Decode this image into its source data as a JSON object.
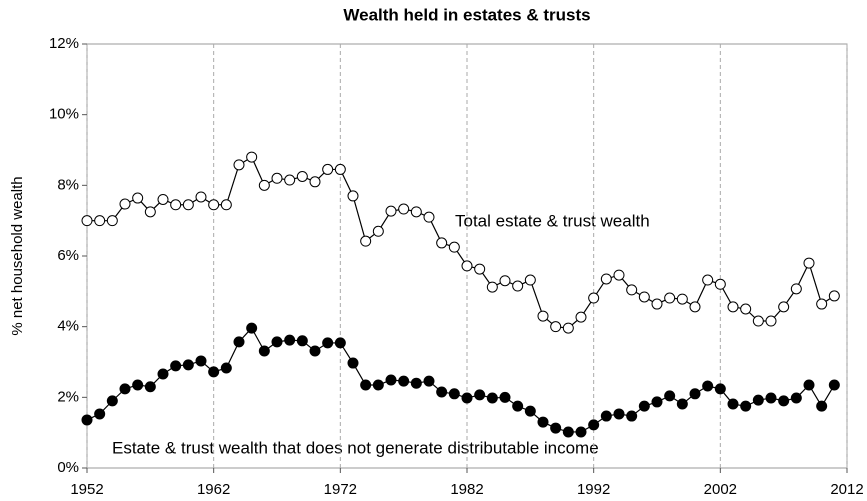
{
  "chart_data": {
    "type": "line",
    "title": "Wealth held in estates & trusts",
    "y_label": "% net household wealth",
    "x": [
      1952,
      1953,
      1954,
      1955,
      1956,
      1957,
      1958,
      1959,
      1960,
      1961,
      1962,
      1963,
      1964,
      1965,
      1966,
      1967,
      1968,
      1969,
      1970,
      1971,
      1972,
      1973,
      1974,
      1975,
      1976,
      1977,
      1978,
      1979,
      1980,
      1981,
      1982,
      1983,
      1984,
      1985,
      1986,
      1987,
      1988,
      1989,
      1990,
      1991,
      1992,
      1993,
      1994,
      1995,
      1996,
      1997,
      1998,
      1999,
      2000,
      2001,
      2002,
      2003,
      2004,
      2005,
      2006,
      2007,
      2008,
      2009,
      2010,
      2011
    ],
    "series": [
      {
        "name": "Total estate & trust wealth",
        "color": "#000000",
        "marker_fill": "#ffffff",
        "values": [
          7.0,
          7.0,
          7.0,
          7.47,
          7.64,
          7.25,
          7.6,
          7.45,
          7.45,
          7.67,
          7.45,
          7.45,
          8.58,
          8.8,
          8.0,
          8.2,
          8.15,
          8.25,
          8.1,
          8.45,
          8.45,
          7.7,
          6.42,
          6.7,
          7.27,
          7.33,
          7.25,
          7.1,
          6.37,
          6.25,
          5.72,
          5.63,
          5.12,
          5.3,
          5.15,
          5.32,
          4.3,
          4.0,
          3.96,
          4.27,
          4.81,
          5.35,
          5.46,
          5.04,
          4.84,
          4.64,
          4.81,
          4.78,
          4.56,
          5.32,
          5.2,
          4.56,
          4.5,
          4.16,
          4.16,
          4.56,
          5.07,
          5.8,
          4.64,
          4.87
        ]
      },
      {
        "name": "Estate & trust wealth that does not generate distributable income",
        "color": "#000000",
        "marker_fill": "#000000",
        "values": [
          1.36,
          1.53,
          1.9,
          2.24,
          2.35,
          2.3,
          2.66,
          2.89,
          2.92,
          3.03,
          2.72,
          2.83,
          3.57,
          3.96,
          3.31,
          3.57,
          3.62,
          3.6,
          3.31,
          3.54,
          3.54,
          2.97,
          2.35,
          2.35,
          2.49,
          2.46,
          2.4,
          2.46,
          2.15,
          2.1,
          1.98,
          2.07,
          1.98,
          2.0,
          1.75,
          1.61,
          1.3,
          1.13,
          1.02,
          1.02,
          1.22,
          1.47,
          1.53,
          1.47,
          1.75,
          1.87,
          2.04,
          1.81,
          2.1,
          2.32,
          2.24,
          1.81,
          1.75,
          1.92,
          1.98,
          1.9,
          1.98,
          2.35,
          1.75,
          2.35
        ]
      }
    ],
    "xlim": [
      1952,
      2012
    ],
    "xticks": [
      1952,
      1962,
      1972,
      1982,
      1992,
      2002,
      2012
    ],
    "ylim": [
      0,
      12
    ],
    "yticks": [
      {
        "value": 0,
        "label": "0%"
      },
      {
        "value": 2,
        "label": "2%"
      },
      {
        "value": 4,
        "label": "4%"
      },
      {
        "value": 6,
        "label": "6%"
      },
      {
        "value": 8,
        "label": "8%"
      },
      {
        "value": 10,
        "label": "10%"
      },
      {
        "value": 12,
        "label": "12%"
      }
    ],
    "grid": "x"
  }
}
